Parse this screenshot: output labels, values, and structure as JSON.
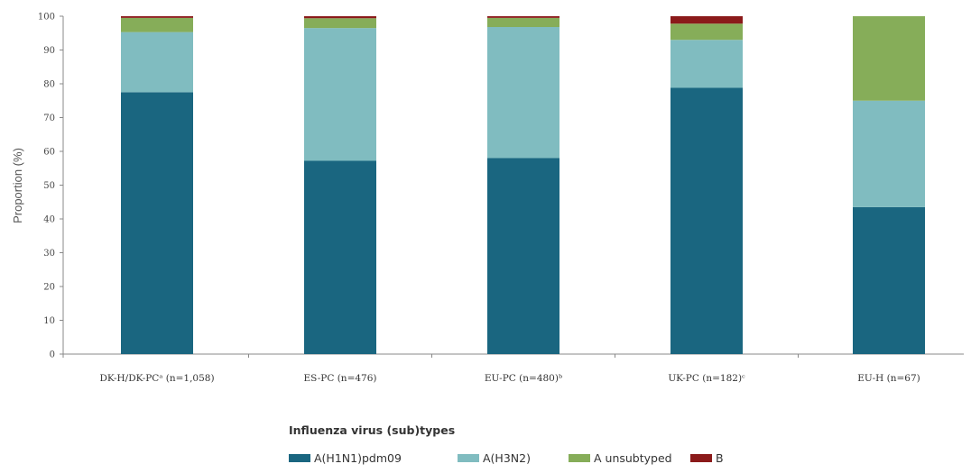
{
  "chart_data": {
    "type": "bar",
    "stacked": true,
    "ylabel": "Proportion  (%)",
    "xlabel": "",
    "ylim": [
      0,
      100
    ],
    "yticks": [
      0,
      10,
      20,
      30,
      40,
      50,
      60,
      70,
      80,
      90,
      100
    ],
    "grid": false,
    "legend_title": "Influenza virus (sub)types",
    "legend_position": "bottom",
    "categories": [
      "DK-H/DK-PCᵃ (n=1,058)",
      "ES-PC (n=476)",
      "EU-PC (n=480)ᵇ",
      "UK-PC (n=182)ᶜ",
      "EU-H (n=67)"
    ],
    "series": [
      {
        "name": "A(H1N1)pdm09",
        "color": "#1a6680",
        "values": [
          77.5,
          57.2,
          58.0,
          78.8,
          43.5
        ]
      },
      {
        "name": "A(H3N2)",
        "color": "#80bcc0",
        "values": [
          17.8,
          39.3,
          38.8,
          14.2,
          31.5
        ]
      },
      {
        "name": "A unsubtyped",
        "color": "#86ad59",
        "values": [
          4.2,
          2.9,
          2.7,
          4.8,
          25.0
        ]
      },
      {
        "name": "B",
        "color": "#8b1a1a",
        "values": [
          0.5,
          0.6,
          0.5,
          2.2,
          0.0
        ]
      }
    ]
  }
}
